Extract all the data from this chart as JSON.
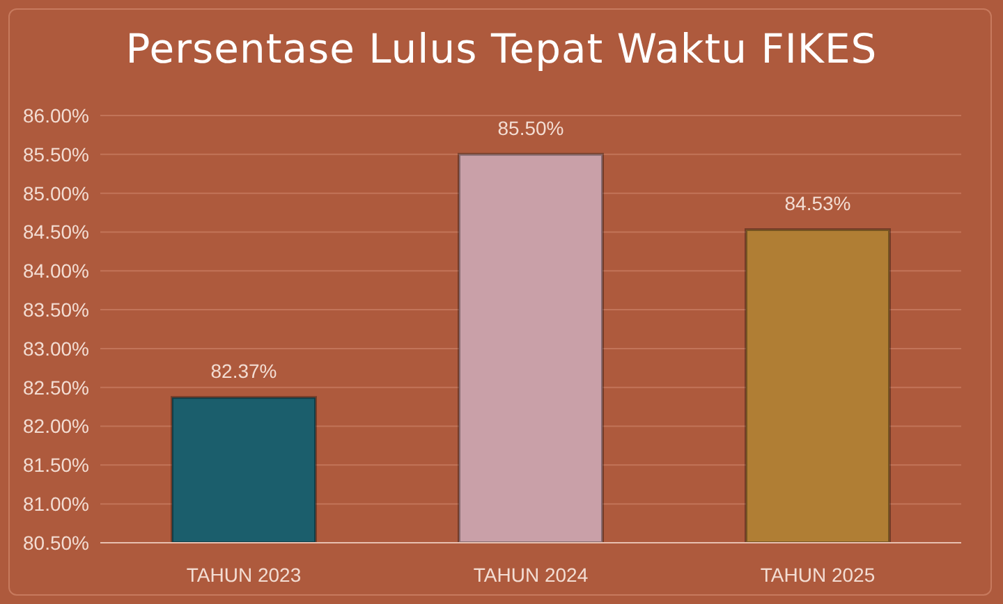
{
  "chart_data": {
    "type": "bar",
    "title": "Persentase Lulus Tepat Waktu FIKES",
    "categories": [
      "TAHUN 2023",
      "TAHUN 2024",
      "TAHUN 2025"
    ],
    "values": [
      82.37,
      85.5,
      84.53
    ],
    "colors": [
      "#1b5e6c",
      "#c9a0a8",
      "#b07e34"
    ],
    "value_labels": [
      "82.37%",
      "85.50%",
      "84.53%"
    ],
    "ylim": [
      80.5,
      86
    ],
    "yticks": [
      {
        "value": 80.5,
        "label": "80.50%"
      },
      {
        "value": 81,
        "label": "81.00%"
      },
      {
        "value": 81.5,
        "label": "81.50%"
      },
      {
        "value": 82,
        "label": "82.00%"
      },
      {
        "value": 82.5,
        "label": "82.50%"
      },
      {
        "value": 83,
        "label": "83.00%"
      },
      {
        "value": 83.5,
        "label": "83.50%"
      },
      {
        "value": 84,
        "label": "84.00%"
      },
      {
        "value": 84.5,
        "label": "84.50%"
      },
      {
        "value": 85,
        "label": "85.00%"
      },
      {
        "value": 85.5,
        "label": "85.50%"
      },
      {
        "value": 86,
        "label": "86.00%"
      }
    ],
    "grid": "y",
    "legend": false
  }
}
